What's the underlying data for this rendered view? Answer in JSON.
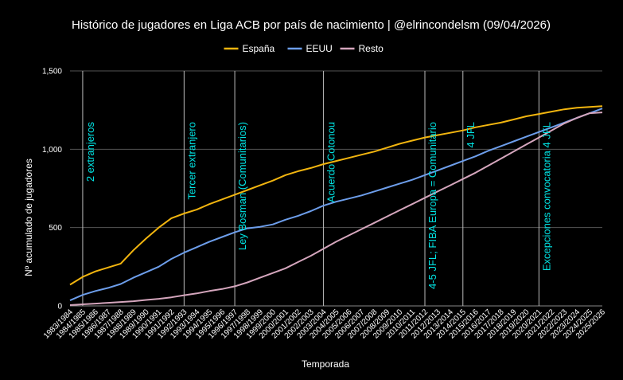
{
  "chart_data": {
    "type": "line",
    "title": "Histórico de jugadores en Liga ACB por país de nacimiento | @elrincondelsm (09/04/2026)",
    "xlabel": "Temporada",
    "ylabel": "Nº acumulado de jugadores",
    "ylim": [
      0,
      1500
    ],
    "yticks": [
      "0",
      "500",
      "1,000",
      "1,500"
    ],
    "ytick_values": [
      0,
      500,
      1000,
      1500
    ],
    "grid": true,
    "legend_position": "top",
    "categories": [
      "1983/1984",
      "1984/1985",
      "1985/1986",
      "1986/1987",
      "1987/1988",
      "1988/1989",
      "1989/1990",
      "1990/1991",
      "1991/1992",
      "1992/1993",
      "1993/1994",
      "1994/1995",
      "1995/1996",
      "1996/1997",
      "1997/1998",
      "1998/1999",
      "1999/2000",
      "2000/2001",
      "2001/2002",
      "2002/2003",
      "2003/2004",
      "2004/2005",
      "2005/2006",
      "2006/2007",
      "2007/2008",
      "2008/2009",
      "2009/2010",
      "2010/2011",
      "2011/2012",
      "2012/2013",
      "2013/2014",
      "2014/2015",
      "2015/2016",
      "2016/2017",
      "2017/2018",
      "2018/2019",
      "2019/2020",
      "2020/2021",
      "2021/2022",
      "2022/2023",
      "2023/2024",
      "2024/2025",
      "2025/2026"
    ],
    "series": [
      {
        "name": "España",
        "color": "#f2b50f",
        "values": [
          135,
          185,
          220,
          245,
          270,
          355,
          430,
          500,
          560,
          590,
          615,
          650,
          680,
          710,
          740,
          770,
          800,
          835,
          860,
          880,
          905,
          925,
          945,
          965,
          985,
          1010,
          1035,
          1055,
          1075,
          1090,
          1105,
          1120,
          1140,
          1155,
          1170,
          1190,
          1210,
          1225,
          1240,
          1255,
          1265,
          1270,
          1275
        ]
      },
      {
        "name": "EEUU",
        "color": "#6d9eeb",
        "values": [
          35,
          70,
          95,
          115,
          140,
          180,
          215,
          250,
          300,
          340,
          375,
          410,
          440,
          470,
          495,
          505,
          520,
          550,
          575,
          605,
          640,
          665,
          685,
          705,
          730,
          755,
          780,
          805,
          835,
          865,
          895,
          925,
          955,
          990,
          1020,
          1050,
          1080,
          1110,
          1140,
          1170,
          1200,
          1230,
          1260
        ]
      },
      {
        "name": "Resto",
        "color": "#d5a6bd",
        "values": [
          5,
          10,
          15,
          20,
          25,
          30,
          38,
          45,
          55,
          68,
          80,
          95,
          108,
          125,
          150,
          180,
          210,
          240,
          280,
          320,
          365,
          410,
          450,
          490,
          530,
          570,
          610,
          650,
          690,
          730,
          770,
          810,
          850,
          895,
          940,
          985,
          1030,
          1075,
          1120,
          1165,
          1200,
          1230,
          1235
        ]
      }
    ],
    "annotations": [
      {
        "text": "2 extranjeros",
        "category": "1984/1985"
      },
      {
        "text": "Tercer extranjero",
        "category": "1992/1993"
      },
      {
        "text": "Ley Bosman (Comunitarios)",
        "category": "1996/1997"
      },
      {
        "text": "Acuerdo Cotonou",
        "category": "2003/2004"
      },
      {
        "text": "4-5 JFL; FIBA Europa = Comunitario",
        "category": "2011/2012"
      },
      {
        "text": "4 JFL",
        "category": "2014/2015"
      },
      {
        "text": "Excepciones convocatoria 4 JFL",
        "category": "2020/2021"
      }
    ]
  }
}
